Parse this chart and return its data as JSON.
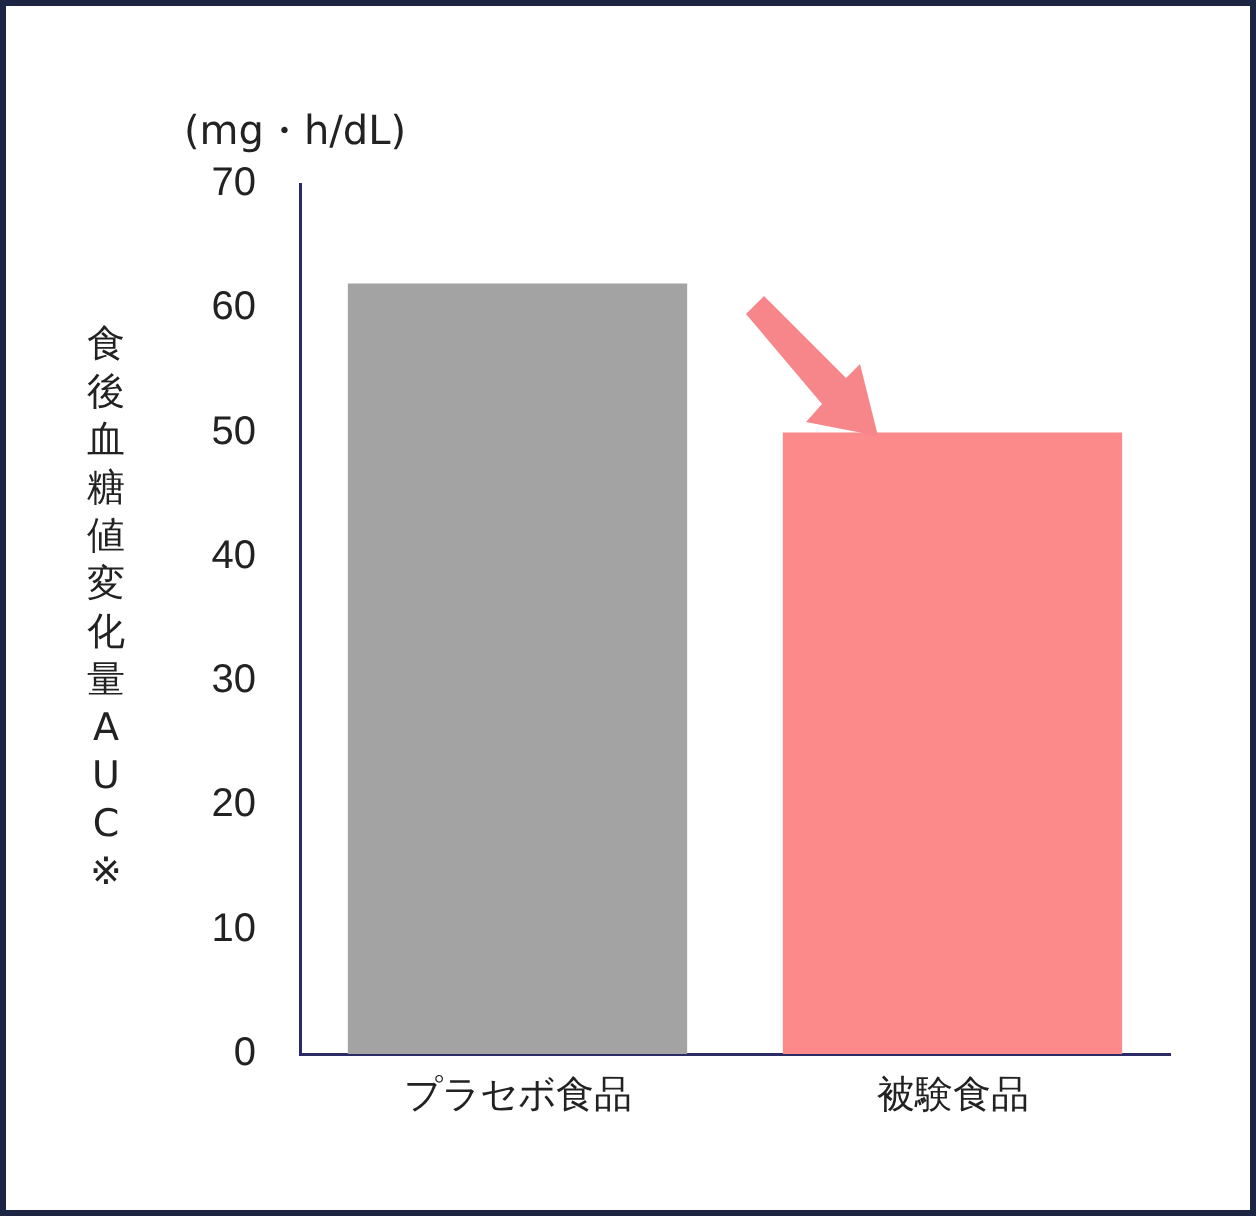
{
  "chart_data": {
    "type": "bar",
    "categories": [
      "プラセボ食品",
      "被験食品"
    ],
    "values": [
      62,
      50
    ],
    "colors": [
      "#a3a3a3",
      "#fd8a8a"
    ],
    "ylabel": "食後血糖値変化量AUC※",
    "ylim": [
      0,
      70
    ],
    "yticks": [
      0,
      10,
      20,
      30,
      40,
      50,
      60,
      70
    ],
    "annotations": [
      "(mg・h/dL)"
    ]
  }
}
